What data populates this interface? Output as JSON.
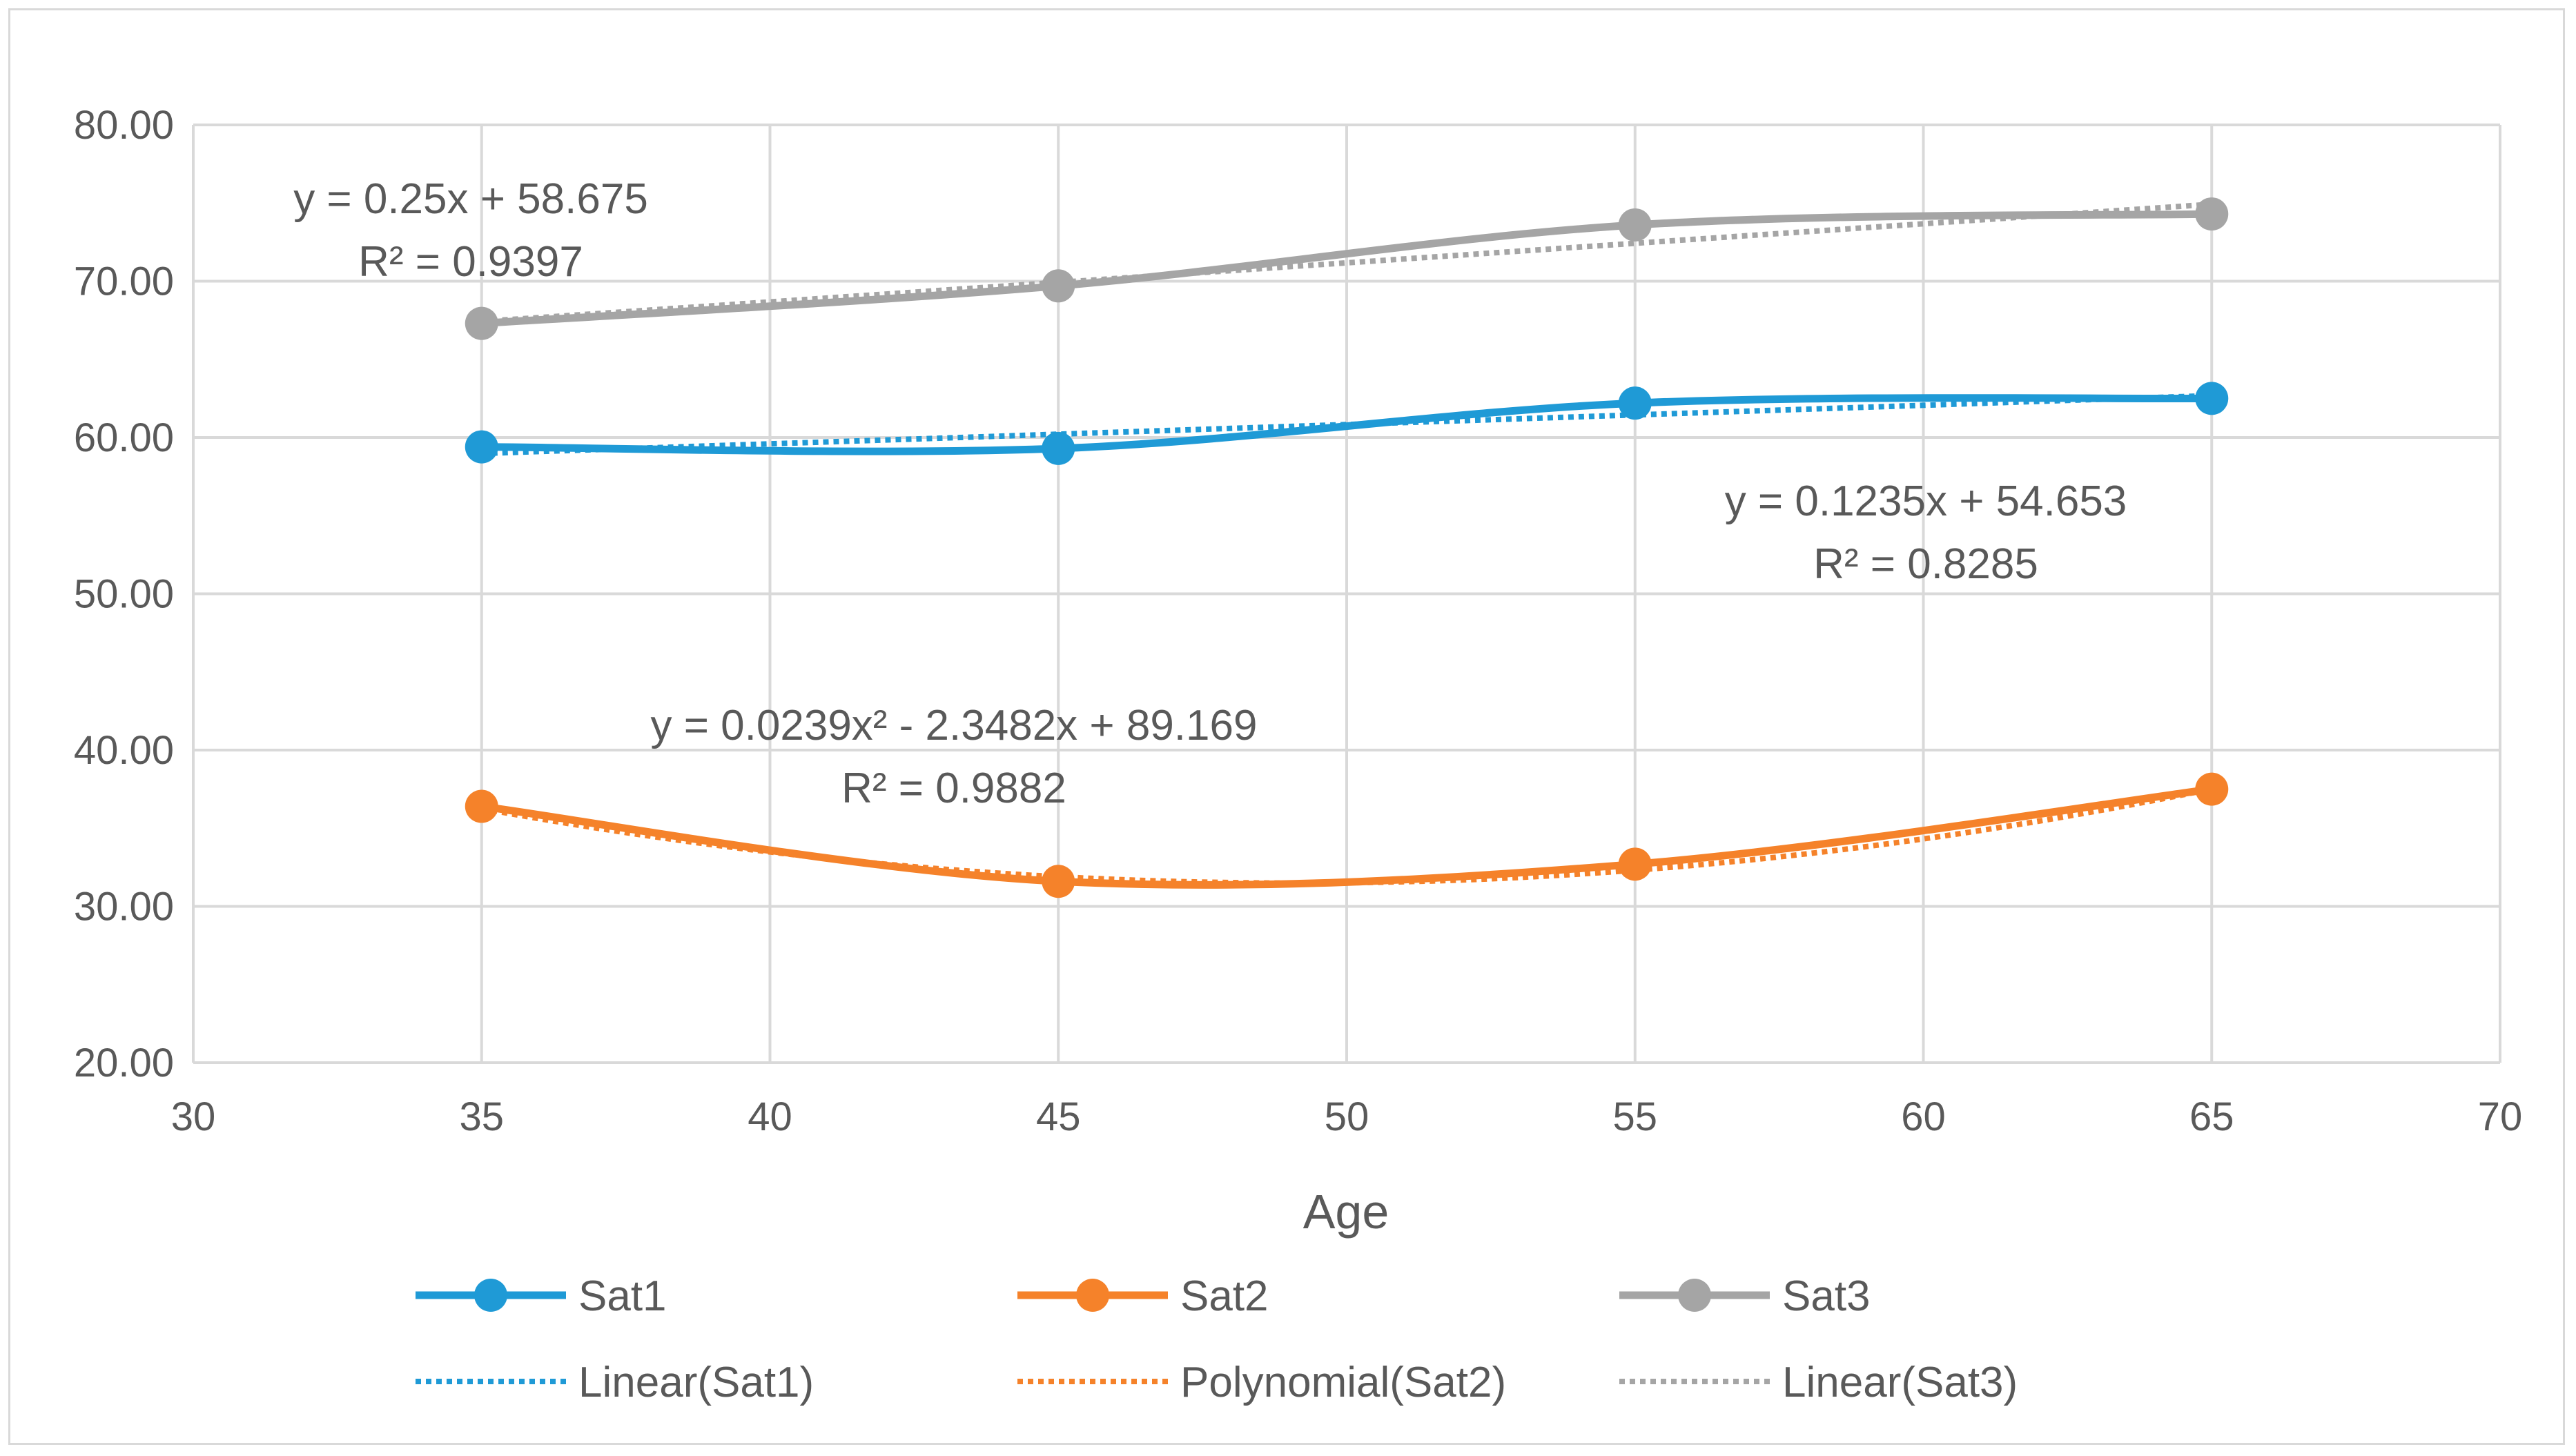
{
  "chart_data": {
    "type": "line",
    "title": "",
    "xlabel": "Age",
    "ylabel": "",
    "xlim": [
      30,
      70
    ],
    "ylim": [
      20,
      80
    ],
    "x_ticks": [
      30,
      35,
      40,
      45,
      50,
      55,
      60,
      65,
      70
    ],
    "y_ticks": [
      20,
      30,
      40,
      50,
      60,
      70,
      80
    ],
    "y_tick_labels": [
      "20.00",
      "30.00",
      "40.00",
      "50.00",
      "60.00",
      "70.00",
      "80.00"
    ],
    "grid": true,
    "legend_position": "bottom",
    "x": [
      35,
      45,
      55,
      65
    ],
    "series": [
      {
        "name": "Sat1",
        "color": "#1f9ad6",
        "values": [
          59.4,
          59.3,
          62.2,
          62.5
        ]
      },
      {
        "name": "Sat2",
        "color": "#f5822a",
        "values": [
          36.4,
          31.6,
          32.7,
          37.5
        ]
      },
      {
        "name": "Sat3",
        "color": "#a5a5a5",
        "values": [
          67.3,
          69.7,
          73.6,
          74.3
        ]
      }
    ],
    "trendlines": [
      {
        "name": "Linear(Sat1)",
        "series": "Sat1",
        "kind": "linear",
        "coef": [
          54.653,
          0.1235
        ],
        "color": "#1f9ad6"
      },
      {
        "name": "Polynomial(Sat2)",
        "series": "Sat2",
        "kind": "poly2",
        "coef": [
          89.169,
          -2.3482,
          0.0239
        ],
        "color": "#f5822a"
      },
      {
        "name": "Linear(Sat3)",
        "series": "Sat3",
        "kind": "linear",
        "coef": [
          58.675,
          0.25
        ],
        "color": "#a5a5a5"
      }
    ],
    "annotations": {
      "sat3_eq": "y = 0.25x + 58.675",
      "sat3_r2": "R² = 0.9397",
      "sat1_eq": "y = 0.1235x + 54.653",
      "sat1_r2": "R² = 0.8285",
      "sat2_eq": "y = 0.0239x² - 2.3482x + 89.169",
      "sat2_r2": "R² = 0.9882"
    },
    "legend": {
      "sat1": "Sat1",
      "sat2": "Sat2",
      "sat3": "Sat3",
      "lin_sat1": "Linear(Sat1)",
      "poly_sat2": "Polynomial(Sat2)",
      "lin_sat3": "Linear(Sat3)"
    }
  }
}
